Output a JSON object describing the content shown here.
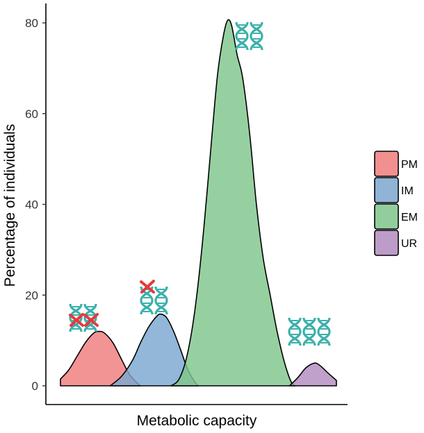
{
  "chart_data": {
    "type": "area",
    "title": "",
    "xlabel": "Metabolic capacity",
    "ylabel": "Percentage of individuals",
    "ylim": [
      0,
      85
    ],
    "yticks": [
      0,
      20,
      40,
      60,
      80
    ],
    "xlim": [
      0,
      100
    ],
    "series": [
      {
        "name": "PM",
        "color": "#F07C7C",
        "points": [
          [
            0,
            1.5
          ],
          [
            3,
            3.5
          ],
          [
            6,
            6.5
          ],
          [
            9,
            9.5
          ],
          [
            12,
            11.6
          ],
          [
            14,
            12.0
          ],
          [
            16,
            11.6
          ],
          [
            19,
            9.5
          ],
          [
            22,
            6
          ],
          [
            25,
            2.5
          ],
          [
            28,
            0.5
          ],
          [
            29,
            0
          ]
        ],
        "genes": {
          "functional": 0,
          "nonfunctional": 2
        }
      },
      {
        "name": "IM",
        "color": "#7BA7CF",
        "points": [
          [
            18,
            0
          ],
          [
            22,
            2
          ],
          [
            26,
            5.5
          ],
          [
            29,
            9.5
          ],
          [
            32,
            13
          ],
          [
            35,
            15.4
          ],
          [
            36.5,
            15.8
          ],
          [
            38.5,
            15
          ],
          [
            41,
            12
          ],
          [
            43.5,
            8
          ],
          [
            46,
            3.8
          ],
          [
            48.5,
            1
          ],
          [
            50,
            0
          ]
        ],
        "genes": {
          "functional": 1,
          "nonfunctional": 1
        }
      },
      {
        "name": "EM",
        "color": "#7FC68C",
        "points": [
          [
            40,
            0
          ],
          [
            43,
            1.5
          ],
          [
            46,
            7
          ],
          [
            49,
            18
          ],
          [
            52,
            35
          ],
          [
            55,
            56
          ],
          [
            57,
            69
          ],
          [
            59,
            77
          ],
          [
            60.5,
            80.5
          ],
          [
            62,
            79.5
          ],
          [
            64,
            73
          ],
          [
            66,
            68
          ],
          [
            68.5,
            56
          ],
          [
            71,
            40
          ],
          [
            73.5,
            28
          ],
          [
            76,
            20
          ],
          [
            78.5,
            12
          ],
          [
            81,
            5.5
          ],
          [
            83.5,
            1
          ],
          [
            85,
            0
          ]
        ],
        "genes": {
          "functional": 2,
          "nonfunctional": 0
        }
      },
      {
        "name": "UR",
        "color": "#B38BC0",
        "points": [
          [
            83,
            0
          ],
          [
            86,
            1.8
          ],
          [
            89,
            4
          ],
          [
            92,
            5
          ],
          [
            94,
            4.5
          ],
          [
            97,
            2.8
          ],
          [
            100,
            1.2
          ]
        ],
        "genes": {
          "functional": 3,
          "nonfunctional": 0
        }
      }
    ],
    "legend": {
      "position": "right"
    }
  }
}
